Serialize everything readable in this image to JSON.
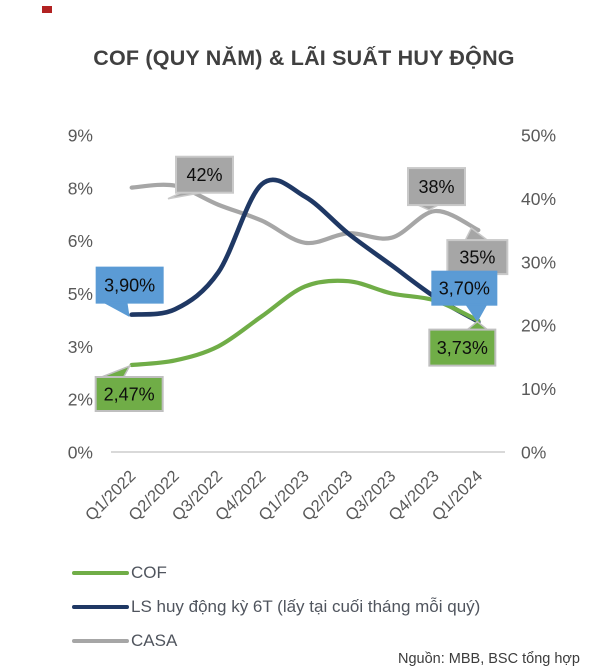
{
  "title": "COF (QUY NĂM) & LÃI SUẤT HUY ĐỘNG",
  "footer_note": "Nguồn: MBB, BSC tổng hợp",
  "colors": {
    "title_text": "#404040",
    "axis_text": "#595959",
    "axis_line": "#d9d9d9",
    "cof_green": "#70ad47",
    "ls_navy": "#1f3864",
    "casa_gray": "#a6a6a6",
    "callout_blue": "#5b9bd5",
    "callout_gray_border": "#c9c9c9",
    "callout_green_border": "#bfbfbf",
    "callout_text": "#0d0d0d",
    "red_marker": "#b22222"
  },
  "chart_data": {
    "type": "line",
    "title": "COF (QUY NĂM) & LÃI SUẤT HUY ĐỘNG",
    "categories": [
      "Q1/2022",
      "Q2/2022",
      "Q3/2022",
      "Q4/2022",
      "Q1/2023",
      "Q2/2023",
      "Q3/2023",
      "Q4/2023",
      "Q1/2024"
    ],
    "series": [
      {
        "id": "casa",
        "name": "CASA",
        "axis": "right",
        "color": "#a6a6a6",
        "width": 4.2,
        "values": [
          41.7,
          42,
          39,
          36.5,
          33,
          34.5,
          33.8,
          38,
          35
        ]
      },
      {
        "id": "ls6t",
        "name": "LS huy động kỳ 6T (lấy tại cuối tháng mỗi quý)",
        "axis": "left",
        "color": "#1f3864",
        "width": 4.6,
        "values": [
          3.9,
          4.05,
          5.1,
          7.6,
          7.25,
          6.2,
          5.3,
          4.4,
          3.7
        ]
      },
      {
        "id": "cof",
        "name": "COF",
        "axis": "left",
        "color": "#70ad47",
        "width": 4.2,
        "values": [
          2.47,
          2.6,
          3.0,
          3.85,
          4.7,
          4.85,
          4.5,
          4.3,
          3.73
        ]
      }
    ],
    "left_axis": {
      "ticks": [
        {
          "label": "9%",
          "value": 9
        },
        {
          "label": "8%",
          "value": 7.5
        },
        {
          "label": "6%",
          "value": 6
        },
        {
          "label": "5%",
          "value": 4.5
        },
        {
          "label": "3%",
          "value": 3
        },
        {
          "label": "2%",
          "value": 1.5
        },
        {
          "label": "0%",
          "value": 0
        }
      ],
      "range": [
        0,
        9
      ]
    },
    "right_axis": {
      "ticks": [
        {
          "label": "50%",
          "value": 50
        },
        {
          "label": "40%",
          "value": 40
        },
        {
          "label": "30%",
          "value": 30
        },
        {
          "label": "20%",
          "value": 20
        },
        {
          "label": "10%",
          "value": 10
        },
        {
          "label": "0%",
          "value": 0
        }
      ],
      "range": [
        0,
        50
      ]
    },
    "grid": false,
    "legend_position": "bottom-left",
    "data_labels": [
      {
        "series": "casa",
        "index": 1,
        "text": "42%",
        "fill": "#a6a6a6",
        "border": "#c9c9c9",
        "text_color": "#0d0d0d"
      },
      {
        "series": "casa",
        "index": 7,
        "text": "38%",
        "fill": "#a6a6a6",
        "border": "#c9c9c9",
        "text_color": "#0d0d0d"
      },
      {
        "series": "casa",
        "index": 8,
        "text": "35%",
        "fill": "#a6a6a6",
        "border": "#c9c9c9",
        "text_color": "#0d0d0d"
      },
      {
        "series": "ls6t",
        "index": 0,
        "text": "3,90%",
        "fill": "#5b9bd5",
        "border": "#5b9bd5",
        "text_color": "#0d0d0d"
      },
      {
        "series": "ls6t",
        "index": 8,
        "text": "3,70%",
        "fill": "#5b9bd5",
        "border": "#5b9bd5",
        "text_color": "#0d0d0d"
      },
      {
        "series": "cof",
        "index": 0,
        "text": "2,47%",
        "fill": "#70ad47",
        "border": "#bfbfbf",
        "text_color": "#0d0d0d"
      },
      {
        "series": "cof",
        "index": 8,
        "text": "3,73%",
        "fill": "#70ad47",
        "border": "#bfbfbf",
        "text_color": "#0d0d0d"
      }
    ]
  },
  "legend": {
    "items": [
      {
        "label": "COF",
        "color": "#70ad47"
      },
      {
        "label": "LS huy động kỳ 6T (lấy tại cuối tháng mỗi quý)",
        "color": "#1f3864"
      },
      {
        "label": "CASA",
        "color": "#a6a6a6"
      }
    ]
  }
}
